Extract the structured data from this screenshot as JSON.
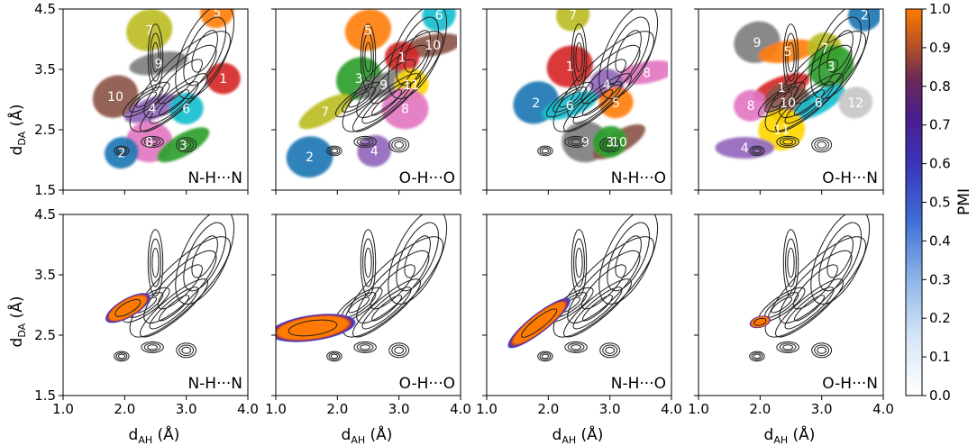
{
  "chart_data": {
    "type": "scatter",
    "description_kind": "grid of 2x4 density/cluster panels with colorbar",
    "xlabel_main": "d",
    "xlabel_sub": "AH",
    "xlabel_unit": " (Å)",
    "ylabel_main": "d",
    "ylabel_sub": "DA",
    "ylabel_unit": " (Å)",
    "xlim": [
      1.0,
      4.0
    ],
    "ylim": [
      1.5,
      4.5
    ],
    "xticks": [
      "1.0",
      "2.0",
      "3.0",
      "4.0"
    ],
    "xtick_values": [
      1.0,
      2.0,
      3.0,
      4.0
    ],
    "yticks": [
      "1.5",
      "2.5",
      "3.5",
      "4.5"
    ],
    "ytick_values": [
      1.5,
      2.5,
      3.5,
      4.5
    ],
    "colorbar": {
      "label": "PMI",
      "range": [
        0.0,
        1.0
      ],
      "ticks": [
        "0.0",
        "0.1",
        "0.2",
        "0.3",
        "0.4",
        "0.5",
        "0.6",
        "0.7",
        "0.8",
        "0.9",
        "1.0"
      ]
    },
    "panel_titles": [
      "N-H···N",
      "O-H···O",
      "N-H···O",
      "O-H···N"
    ],
    "cluster_colors": {
      "1": "#d62728",
      "2": "#1f77b4",
      "3": "#2ca02c",
      "4": "#9467bd",
      "5": "#ff7f0e",
      "6": "#17becf",
      "7": "#bcbd22",
      "8": "#e377c2",
      "9": "#7f7f7f",
      "10": "#8c564b",
      "11": "#ffd700",
      "12": "#c7c7c7"
    },
    "top_row_clusters": [
      [
        {
          "label": "5",
          "x": 3.5,
          "y": 4.45
        },
        {
          "label": "7",
          "x": 2.4,
          "y": 4.15
        },
        {
          "label": "9",
          "x": 2.55,
          "y": 3.6
        },
        {
          "label": "1",
          "x": 3.6,
          "y": 3.35
        },
        {
          "label": "10",
          "x": 1.85,
          "y": 3.05
        },
        {
          "label": "4",
          "x": 2.45,
          "y": 2.85
        },
        {
          "label": "6",
          "x": 3.0,
          "y": 2.85
        },
        {
          "label": "8",
          "x": 2.4,
          "y": 2.3
        },
        {
          "label": "3",
          "x": 2.95,
          "y": 2.25
        },
        {
          "label": "2",
          "x": 1.95,
          "y": 2.12
        }
      ],
      [
        {
          "label": "6",
          "x": 3.65,
          "y": 4.4
        },
        {
          "label": "5",
          "x": 2.5,
          "y": 4.15
        },
        {
          "label": "10",
          "x": 3.55,
          "y": 3.9
        },
        {
          "label": "1",
          "x": 3.05,
          "y": 3.7
        },
        {
          "label": "3",
          "x": 2.35,
          "y": 3.35
        },
        {
          "label": "9",
          "x": 2.75,
          "y": 3.25
        },
        {
          "label": "11",
          "x": 3.2,
          "y": 3.25
        },
        {
          "label": "8",
          "x": 3.1,
          "y": 2.85
        },
        {
          "label": "7",
          "x": 1.8,
          "y": 2.8
        },
        {
          "label": "4",
          "x": 2.6,
          "y": 2.15
        },
        {
          "label": "2",
          "x": 1.55,
          "y": 2.05
        }
      ],
      [
        {
          "label": "7",
          "x": 2.4,
          "y": 4.4
        },
        {
          "label": "1",
          "x": 2.35,
          "y": 3.55
        },
        {
          "label": "8",
          "x": 3.6,
          "y": 3.45
        },
        {
          "label": "4",
          "x": 2.95,
          "y": 3.25
        },
        {
          "label": "2",
          "x": 1.8,
          "y": 2.95
        },
        {
          "label": "6",
          "x": 2.35,
          "y": 2.9
        },
        {
          "label": "5",
          "x": 3.1,
          "y": 2.95
        },
        {
          "label": "9",
          "x": 2.6,
          "y": 2.3
        },
        {
          "label": "10",
          "x": 3.15,
          "y": 2.3
        },
        {
          "label": "3",
          "x": 3.0,
          "y": 2.3
        }
      ],
      [
        {
          "label": "2",
          "x": 3.7,
          "y": 4.4
        },
        {
          "label": "9",
          "x": 1.95,
          "y": 3.95
        },
        {
          "label": "5",
          "x": 2.45,
          "y": 3.8
        },
        {
          "label": "7",
          "x": 3.05,
          "y": 3.85
        },
        {
          "label": "3",
          "x": 3.15,
          "y": 3.55
        },
        {
          "label": "1",
          "x": 2.35,
          "y": 3.2
        },
        {
          "label": "8",
          "x": 1.85,
          "y": 2.9
        },
        {
          "label": "10",
          "x": 2.45,
          "y": 2.95
        },
        {
          "label": "6",
          "x": 2.95,
          "y": 2.95
        },
        {
          "label": "12",
          "x": 3.55,
          "y": 2.95
        },
        {
          "label": "11",
          "x": 2.35,
          "y": 2.5
        },
        {
          "label": "4",
          "x": 1.75,
          "y": 2.2
        }
      ]
    ],
    "bottom_row_pmi_blobs": [
      {
        "cx": 2.05,
        "cy": 2.95,
        "rx": 0.42,
        "ry": 0.16,
        "rot": -30
      },
      {
        "cx": 1.6,
        "cy": 2.62,
        "rx": 0.72,
        "ry": 0.22,
        "rot": -8
      },
      {
        "cx": 1.85,
        "cy": 2.7,
        "rx": 0.65,
        "ry": 0.16,
        "rot": -38
      },
      {
        "cx": 2.0,
        "cy": 2.72,
        "rx": 0.18,
        "ry": 0.1,
        "rot": -15
      }
    ]
  }
}
